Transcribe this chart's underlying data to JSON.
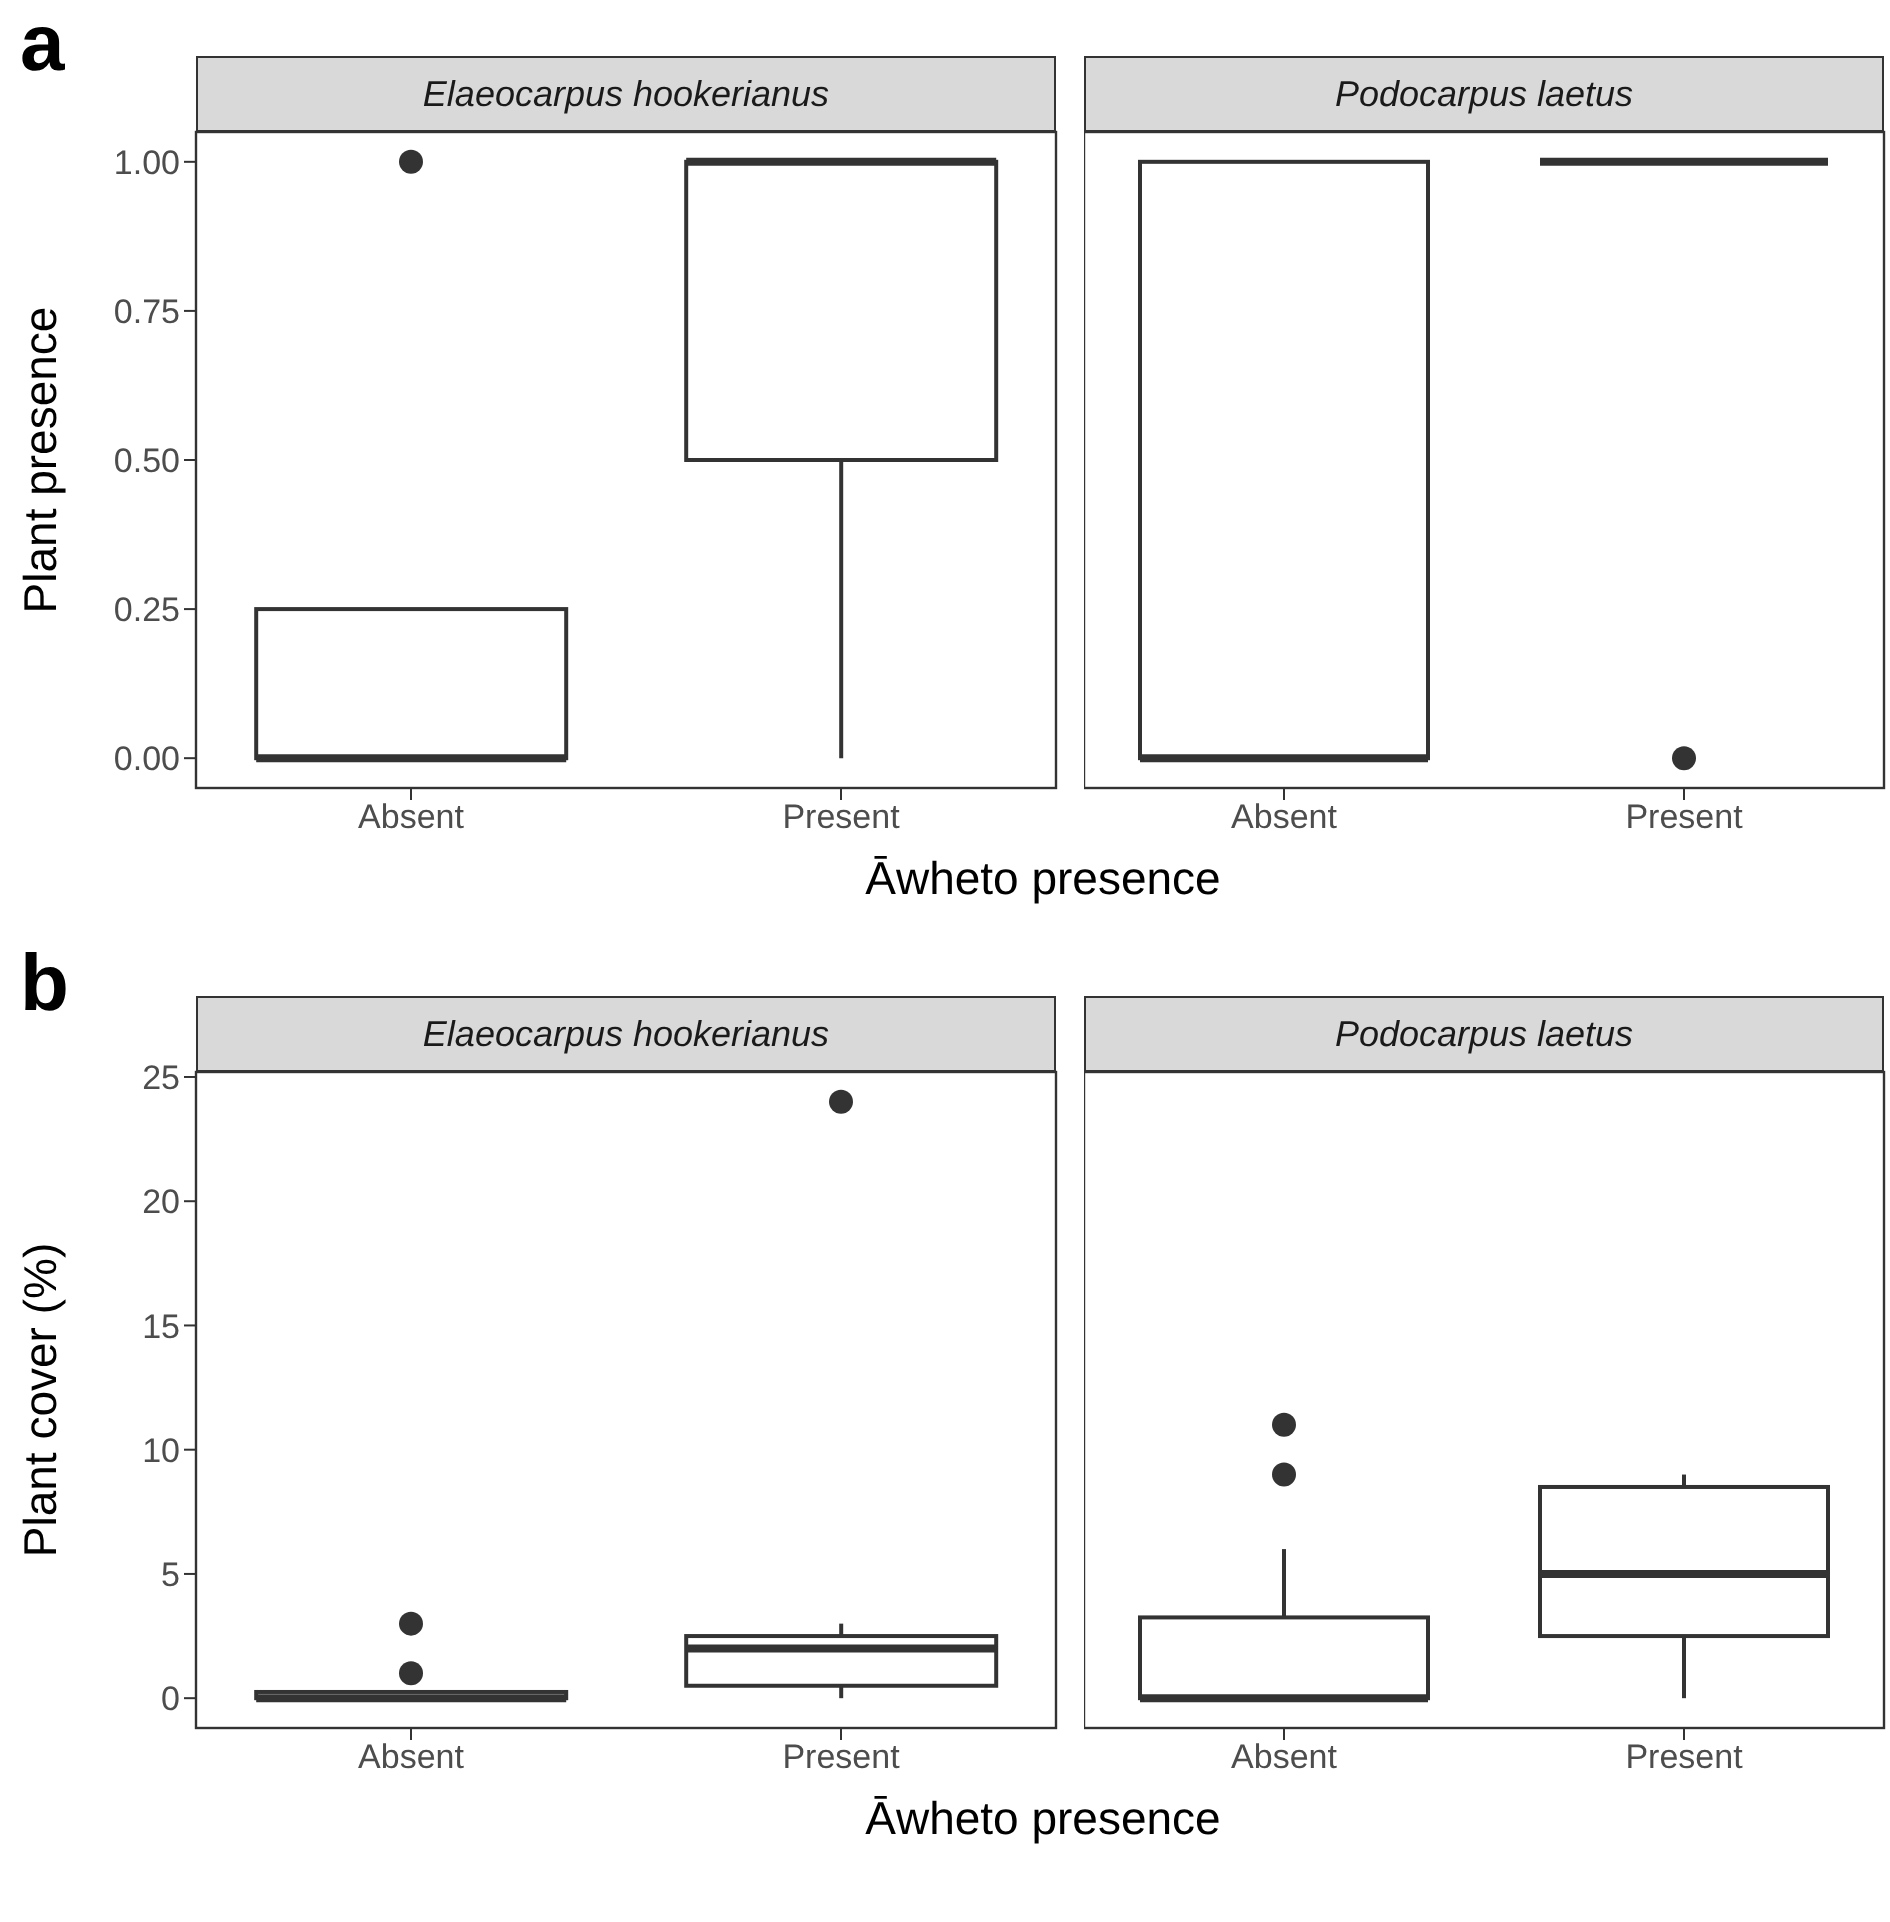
{
  "chart_data": [
    {
      "type": "box",
      "title": "Elaeocarpus hookerianus",
      "xlabel": "Āwheto presence",
      "ylabel": "Plant presence",
      "annotations": [
        "a"
      ],
      "categories": [
        "Absent",
        "Present"
      ],
      "ylim": [
        -0.05,
        1.05
      ],
      "yticks": [
        {
          "value": 0,
          "label": "0.00"
        },
        {
          "value": 0.25,
          "label": "0.25"
        },
        {
          "value": 0.5,
          "label": "0.50"
        },
        {
          "value": 0.75,
          "label": "0.75"
        },
        {
          "value": 1,
          "label": "1.00"
        }
      ],
      "grid": false,
      "series": [
        {
          "color": "#333333",
          "boxes": [
            {
              "low": 0,
              "q1": 0,
              "median": 0,
              "q3": 0.25,
              "high": 0.25,
              "outliers": [
                1
              ]
            },
            {
              "low": 0,
              "q1": 0.5,
              "median": 1,
              "q3": 1,
              "high": 1
            }
          ]
        }
      ]
    },
    {
      "type": "box",
      "title": "Podocarpus laetus",
      "categories": [
        "Absent",
        "Present"
      ],
      "ylim": [
        -0.05,
        1.05
      ],
      "tick_labels": "x",
      "grid": false,
      "series": [
        {
          "color": "#333333",
          "boxes": [
            {
              "low": 0,
              "q1": 0,
              "median": 0,
              "q3": 1,
              "high": 1
            },
            {
              "low": 1,
              "q1": 1,
              "median": 1,
              "q3": 1,
              "high": 1,
              "outliers": [
                0
              ]
            }
          ]
        }
      ]
    },
    {
      "type": "box",
      "title": "Elaeocarpus hookerianus",
      "xlabel": "Āwheto presence",
      "ylabel": "Plant cover (%)",
      "annotations": [
        "b"
      ],
      "categories": [
        "Absent",
        "Present"
      ],
      "ylim": [
        -1.2,
        25.2
      ],
      "yticks": [
        0,
        5,
        10,
        15,
        20,
        25
      ],
      "grid": false,
      "series": [
        {
          "color": "#333333",
          "boxes": [
            {
              "low": 0,
              "q1": 0,
              "median": 0,
              "q3": 0.25,
              "high": 0.25,
              "outliers": [
                1,
                3
              ]
            },
            {
              "low": 0,
              "q1": 0.5,
              "median": 2,
              "q3": 2.5,
              "high": 3,
              "outliers": [
                24
              ]
            }
          ]
        }
      ]
    },
    {
      "type": "box",
      "title": "Podocarpus laetus",
      "categories": [
        "Absent",
        "Present"
      ],
      "ylim": [
        -1.2,
        25.2
      ],
      "tick_labels": "x",
      "grid": false,
      "series": [
        {
          "color": "#333333",
          "boxes": [
            {
              "low": 0,
              "q1": 0,
              "median": 0,
              "q3": 3.25,
              "high": 6,
              "outliers": [
                9,
                11
              ]
            },
            {
              "low": 0,
              "q1": 2.5,
              "median": 5,
              "q3": 8.5,
              "high": 9
            }
          ]
        }
      ]
    }
  ]
}
